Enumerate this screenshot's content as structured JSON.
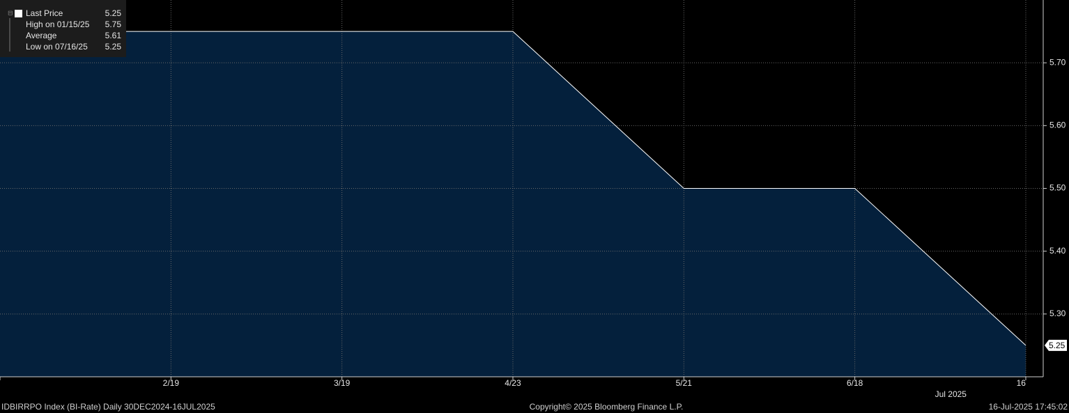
{
  "chart_data": {
    "type": "area",
    "categories": [
      null,
      "2/19",
      "3/19",
      "4/23",
      "5/21",
      "6/18",
      "16"
    ],
    "x_sublabel": "Jul 2025",
    "series": [
      {
        "name": "Last Price",
        "color": "#ffffff",
        "fill": "#04203c",
        "values": [
          5.75,
          5.75,
          5.75,
          5.75,
          5.5,
          5.5,
          5.25
        ],
        "last_value": 5.25
      }
    ],
    "stats": [
      {
        "label": "High on 01/15/25",
        "value": 5.75
      },
      {
        "label": "Average",
        "value": 5.61
      },
      {
        "label": "Low on 07/16/25",
        "value": 5.25
      }
    ],
    "last_price_label": "5.25",
    "ylim": [
      5.2,
      5.8
    ],
    "yticks": [
      {
        "value": 5.3,
        "label": "5.30"
      },
      {
        "value": 5.4,
        "label": "5.40"
      },
      {
        "value": 5.5,
        "label": "5.50"
      },
      {
        "value": 5.6,
        "label": "5.60"
      },
      {
        "value": 5.7,
        "label": "5.70"
      }
    ],
    "grid": true,
    "footer": {
      "left": "IDBIRRPO Index (BI-Rate)  Daily 30DEC2024-16JUL2025",
      "center": "Copyright© 2025 Bloomberg Finance L.P.",
      "right": "16-Jul-2025 17:45:02"
    }
  }
}
